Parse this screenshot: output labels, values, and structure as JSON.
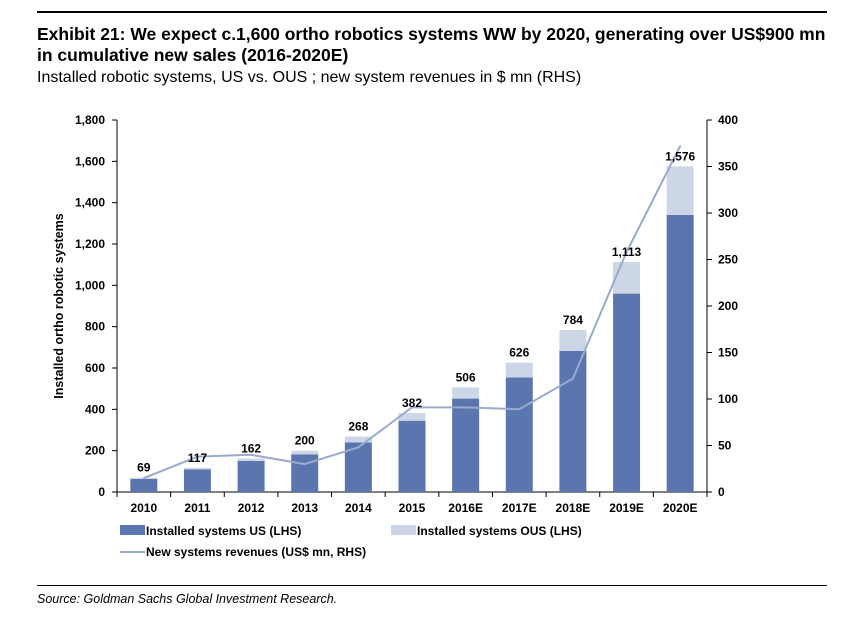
{
  "header": {
    "title": "Exhibit 21: We expect c.1,600 ortho robotics systems WW by 2020, generating over US$900 mn in cumulative new sales (2016-2020E)",
    "subtitle": "Installed robotic systems, US vs. OUS ; new system revenues in $ mn (RHS)"
  },
  "footer": {
    "source": "Source: Goldman Sachs Global Investment Research."
  },
  "colors": {
    "us": "#5b76ae",
    "ous": "#cdd6e7",
    "line": "#9aaacf"
  },
  "chart_data": {
    "type": "bar",
    "stacked": true,
    "categories": [
      "2010",
      "2011",
      "2012",
      "2013",
      "2014",
      "2015",
      "2016E",
      "2017E",
      "2018E",
      "2019E",
      "2020E"
    ],
    "series": [
      {
        "name": "Installed systems US (LHS)",
        "axis": "left",
        "values": [
          63,
          109,
          150,
          182,
          240,
          345,
          452,
          554,
          683,
          960,
          1341
        ]
      },
      {
        "name": "Installed systems OUS (LHS)",
        "axis": "left",
        "values": [
          6,
          8,
          12,
          18,
          28,
          37,
          54,
          72,
          101,
          153,
          235
        ]
      },
      {
        "name": "New systems revenues (US$ mn, RHS)",
        "axis": "right",
        "type": "line",
        "values": [
          15,
          38,
          40,
          30,
          48,
          91,
          91,
          89,
          122,
          258,
          372
        ]
      }
    ],
    "totals": [
      69,
      117,
      162,
      200,
      268,
      382,
      506,
      626,
      784,
      1113,
      1576
    ],
    "total_labels": [
      "69",
      "117",
      "162",
      "200",
      "268",
      "382",
      "506",
      "626",
      "784",
      "1,113",
      "1,576"
    ],
    "ylabel": "Installed ortho robotic systems",
    "ylim": [
      0,
      1800
    ],
    "y2lim": [
      0,
      400
    ],
    "yticks": [
      0,
      200,
      400,
      600,
      800,
      1000,
      1200,
      1400,
      1600,
      1800
    ],
    "ytick_labels": [
      "0",
      "200",
      "400",
      "600",
      "800",
      "1,000",
      "1,200",
      "1,400",
      "1,600",
      "1,800"
    ],
    "y2ticks": [
      0,
      50,
      100,
      150,
      200,
      250,
      300,
      350,
      400
    ],
    "y2tick_labels": [
      "0",
      "50",
      "100",
      "150",
      "200",
      "250",
      "300",
      "350",
      "400"
    ],
    "grid": false,
    "legend_position": "bottom-left"
  }
}
